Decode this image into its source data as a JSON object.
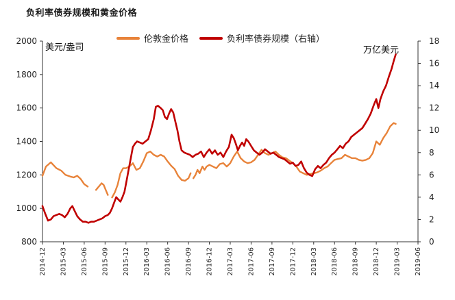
{
  "chart_data": {
    "type": "line",
    "title": "负利率债券规模和黄金价格",
    "ylabel_left": "美元/盎司",
    "ylabel_right": "万亿美元",
    "ylim_left": [
      800,
      2000
    ],
    "ylim_right": [
      0,
      18
    ],
    "yticks_left": [
      "800",
      "1000",
      "1200",
      "1400",
      "1600",
      "1800",
      "2000"
    ],
    "yticks_right": [
      "0",
      "2",
      "4",
      "6",
      "8",
      "10",
      "12",
      "14",
      "16",
      "18"
    ],
    "xticks": [
      "2014-12",
      "2015-03",
      "2015-06",
      "2015-09",
      "2015-12",
      "2016-03",
      "2016-06",
      "2016-09",
      "2016-12",
      "2017-03",
      "2017-06",
      "2017-09",
      "2017-12",
      "2018-03",
      "2018-06",
      "2018-09",
      "2018-12",
      "2019-03",
      "2019-06"
    ],
    "colors": {
      "gold": "#e8833a",
      "bonds": "#c00000"
    },
    "series": [
      {
        "name": "伦敦金价格",
        "axis": "left",
        "color": "#e8833a",
        "segments": [
          [
            [
              0,
              1195
            ],
            [
              0.5,
              1250
            ],
            [
              1.2,
              1275
            ],
            [
              2,
              1240
            ],
            [
              2.7,
              1225
            ],
            [
              3.3,
              1200
            ],
            [
              4,
              1190
            ],
            [
              4.5,
              1185
            ],
            [
              5,
              1195
            ],
            [
              5.5,
              1175
            ],
            [
              6,
              1145
            ],
            [
              6.5,
              1130
            ]
          ],
          [
            [
              7.7,
              1110
            ],
            [
              8.1,
              1130
            ],
            [
              8.5,
              1150
            ],
            [
              8.8,
              1140
            ],
            [
              9.1,
              1110
            ],
            [
              9.4,
              1080
            ]
          ],
          [
            [
              10,
              1065
            ],
            [
              10.4,
              1095
            ],
            [
              10.8,
              1140
            ],
            [
              11.2,
              1210
            ],
            [
              11.6,
              1240
            ],
            [
              12,
              1240
            ],
            [
              12.5,
              1250
            ],
            [
              13,
              1270
            ],
            [
              13.5,
              1230
            ],
            [
              14,
              1240
            ],
            [
              14.5,
              1280
            ],
            [
              15,
              1330
            ],
            [
              15.5,
              1340
            ],
            [
              16,
              1320
            ],
            [
              16.5,
              1310
            ],
            [
              17,
              1320
            ],
            [
              17.5,
              1310
            ],
            [
              18,
              1280
            ],
            [
              18.5,
              1255
            ],
            [
              19,
              1235
            ],
            [
              19.5,
              1195
            ],
            [
              20,
              1170
            ],
            [
              20.5,
              1165
            ],
            [
              21,
              1180
            ],
            [
              21.3,
              1210
            ]
          ],
          [
            [
              21.7,
              1180
            ],
            [
              22,
              1200
            ],
            [
              22.3,
              1230
            ],
            [
              22.6,
              1210
            ],
            [
              23,
              1250
            ],
            [
              23.3,
              1230
            ],
            [
              23.6,
              1250
            ],
            [
              24,
              1260
            ],
            [
              24.5,
              1250
            ],
            [
              25,
              1240
            ],
            [
              25.5,
              1265
            ],
            [
              26,
              1270
            ],
            [
              26.5,
              1250
            ],
            [
              27,
              1270
            ],
            [
              27.5,
              1310
            ],
            [
              28,
              1340
            ],
            [
              28.5,
              1300
            ],
            [
              29,
              1280
            ],
            [
              29.5,
              1270
            ],
            [
              30,
              1275
            ],
            [
              30.5,
              1290
            ],
            [
              31,
              1320
            ],
            [
              31.5,
              1350
            ],
            [
              32,
              1330
            ],
            [
              32.5,
              1320
            ],
            [
              33,
              1330
            ],
            [
              33.5,
              1340
            ],
            [
              34,
              1320
            ],
            [
              34.5,
              1305
            ],
            [
              35,
              1300
            ],
            [
              35.5,
              1285
            ],
            [
              36,
              1270
            ],
            [
              36.5,
              1250
            ],
            [
              37,
              1220
            ],
            [
              37.5,
              1210
            ],
            [
              38,
              1200
            ],
            [
              38.5,
              1205
            ],
            [
              39,
              1210
            ],
            [
              39.5,
              1215
            ],
            [
              40,
              1225
            ],
            [
              40.5,
              1240
            ],
            [
              41,
              1250
            ],
            [
              41.5,
              1270
            ],
            [
              42,
              1290
            ],
            [
              42.5,
              1295
            ],
            [
              43,
              1300
            ],
            [
              43.5,
              1320
            ],
            [
              44,
              1310
            ],
            [
              44.5,
              1300
            ],
            [
              45,
              1300
            ],
            [
              45.5,
              1290
            ],
            [
              46,
              1285
            ],
            [
              46.5,
              1290
            ],
            [
              47,
              1300
            ],
            [
              47.5,
              1330
            ],
            [
              48,
              1400
            ],
            [
              48.5,
              1380
            ],
            [
              49,
              1420
            ],
            [
              49.5,
              1450
            ],
            [
              50,
              1490
            ],
            [
              50.5,
              1510
            ],
            [
              50.8,
              1505
            ]
          ]
        ]
      },
      {
        "name": "负利率债券规模（右轴）",
        "axis": "right",
        "color": "#c00000",
        "segments": [
          [
            [
              0,
              3.2
            ],
            [
              0.4,
              2.5
            ],
            [
              0.8,
              1.9
            ],
            [
              1.2,
              2.0
            ],
            [
              1.6,
              2.3
            ],
            [
              2,
              2.4
            ],
            [
              2.4,
              2.5
            ],
            [
              2.8,
              2.4
            ],
            [
              3.2,
              2.2
            ],
            [
              3.6,
              2.5
            ],
            [
              4,
              3.0
            ],
            [
              4.3,
              3.2
            ],
            [
              4.6,
              2.8
            ],
            [
              5,
              2.3
            ],
            [
              5.4,
              2.0
            ],
            [
              5.8,
              1.8
            ],
            [
              6.2,
              1.8
            ],
            [
              6.6,
              1.7
            ],
            [
              7,
              1.8
            ],
            [
              7.4,
              1.8
            ],
            [
              7.8,
              1.9
            ],
            [
              8.2,
              2.0
            ],
            [
              8.6,
              2.1
            ],
            [
              9,
              2.3
            ],
            [
              9.4,
              2.4
            ],
            [
              9.7,
              2.6
            ],
            [
              10,
              3.0
            ],
            [
              10.3,
              3.5
            ],
            [
              10.6,
              4.0
            ],
            [
              10.9,
              3.8
            ],
            [
              11.2,
              3.6
            ],
            [
              11.5,
              4.0
            ],
            [
              11.8,
              4.5
            ],
            [
              12.1,
              5.5
            ],
            [
              12.4,
              6.5
            ],
            [
              12.7,
              7.5
            ],
            [
              13,
              8.5
            ],
            [
              13.3,
              8.8
            ],
            [
              13.6,
              9.0
            ],
            [
              14,
              8.9
            ],
            [
              14.4,
              8.8
            ],
            [
              14.8,
              9.0
            ],
            [
              15.2,
              9.2
            ],
            [
              15.6,
              10
            ],
            [
              16,
              11
            ],
            [
              16.3,
              12.1
            ],
            [
              16.6,
              12.2
            ],
            [
              17,
              12.0
            ],
            [
              17.3,
              11.8
            ],
            [
              17.6,
              11.2
            ],
            [
              17.9,
              11.0
            ],
            [
              18.2,
              11.5
            ],
            [
              18.5,
              11.9
            ],
            [
              18.8,
              11.6
            ],
            [
              19.1,
              10.8
            ],
            [
              19.4,
              10.0
            ],
            [
              19.7,
              9.0
            ],
            [
              20,
              8.2
            ],
            [
              20.4,
              8.0
            ],
            [
              20.8,
              7.9
            ],
            [
              21.2,
              7.8
            ],
            [
              21.6,
              7.6
            ],
            [
              22,
              7.8
            ],
            [
              22.4,
              7.9
            ],
            [
              22.8,
              8.1
            ],
            [
              23.2,
              7.6
            ],
            [
              23.6,
              8.0
            ],
            [
              24,
              8.3
            ],
            [
              24.4,
              7.9
            ],
            [
              24.8,
              8.2
            ],
            [
              25.2,
              7.8
            ],
            [
              25.6,
              8.0
            ],
            [
              26,
              7.6
            ],
            [
              26.4,
              8.1
            ],
            [
              26.8,
              8.5
            ],
            [
              27.2,
              9.6
            ],
            [
              27.5,
              9.3
            ],
            [
              27.8,
              8.8
            ],
            [
              28.1,
              8.2
            ],
            [
              28.4,
              8.6
            ],
            [
              28.7,
              8.9
            ],
            [
              29,
              8.6
            ],
            [
              29.3,
              9.2
            ],
            [
              29.6,
              9.0
            ],
            [
              30,
              8.6
            ],
            [
              30.4,
              8.2
            ],
            [
              30.8,
              8.0
            ],
            [
              31.2,
              7.8
            ],
            [
              31.6,
              8.0
            ],
            [
              32,
              8.3
            ],
            [
              32.4,
              8.1
            ],
            [
              32.8,
              7.9
            ],
            [
              33.2,
              8.0
            ],
            [
              33.6,
              7.8
            ],
            [
              34,
              7.6
            ],
            [
              34.4,
              7.5
            ],
            [
              34.8,
              7.4
            ],
            [
              35.2,
              7.2
            ],
            [
              35.6,
              7.0
            ],
            [
              36,
              7.1
            ],
            [
              36.4,
              6.8
            ],
            [
              36.8,
              6.9
            ],
            [
              37.2,
              7.2
            ],
            [
              37.6,
              6.6
            ],
            [
              38,
              6.2
            ],
            [
              38.4,
              6.0
            ],
            [
              38.8,
              5.9
            ],
            [
              39.2,
              6.5
            ],
            [
              39.6,
              6.8
            ],
            [
              40,
              6.6
            ],
            [
              40.4,
              6.9
            ],
            [
              40.8,
              7.1
            ],
            [
              41.2,
              7.5
            ],
            [
              41.6,
              7.8
            ],
            [
              42,
              8.0
            ],
            [
              42.4,
              8.3
            ],
            [
              42.8,
              8.6
            ],
            [
              43.2,
              8.4
            ],
            [
              43.6,
              8.8
            ],
            [
              44,
              9.0
            ],
            [
              44.4,
              9.4
            ],
            [
              44.8,
              9.6
            ],
            [
              45.2,
              9.8
            ],
            [
              45.6,
              10.0
            ],
            [
              46,
              10.2
            ],
            [
              46.4,
              10.6
            ],
            [
              46.8,
              11.0
            ],
            [
              47.2,
              11.5
            ],
            [
              47.6,
              12.2
            ],
            [
              48,
              12.8
            ],
            [
              48.3,
              12.0
            ],
            [
              48.6,
              12.8
            ],
            [
              49,
              13.5
            ],
            [
              49.4,
              14.0
            ],
            [
              49.8,
              14.8
            ],
            [
              50.2,
              15.5
            ],
            [
              50.5,
              16.2
            ],
            [
              50.8,
              16.8
            ]
          ]
        ]
      }
    ]
  }
}
